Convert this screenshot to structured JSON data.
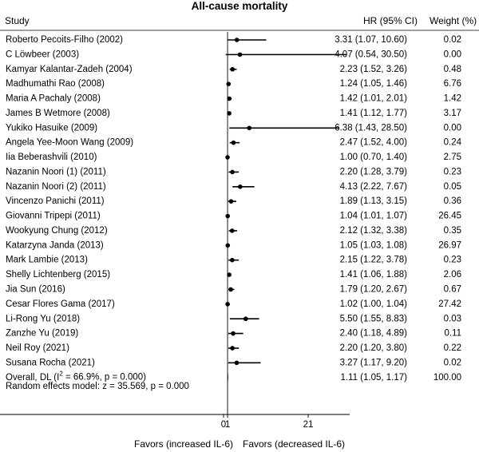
{
  "chart_data": {
    "type": "forest",
    "title": "All-cause mortality",
    "columns": {
      "study": "Study",
      "effect": "HR (95% CI)",
      "weight": "Weight (%)"
    },
    "null_value": 1,
    "x_ticks": [
      0,
      1,
      21
    ],
    "x_range": [
      0,
      36
    ],
    "favors_left": "Favors (increased IL-6)",
    "favors_right": "Favors (decreased IL-6)",
    "studies": [
      {
        "name": "Roberto Pecoits-Filho (2002)",
        "hr": 3.31,
        "lo": 1.07,
        "hi": 10.6,
        "ci_text": "3.31 (1.07, 10.60)",
        "weight": "0.02"
      },
      {
        "name": "C Löwbeer (2003)",
        "hr": 4.07,
        "lo": 0.54,
        "hi": 30.5,
        "ci_text": "4.07 (0.54, 30.50)",
        "weight": "0.00"
      },
      {
        "name": "Kamyar Kalantar-Zadeh (2004)",
        "hr": 2.23,
        "lo": 1.52,
        "hi": 3.26,
        "ci_text": "2.23 (1.52, 3.26)",
        "weight": "0.48"
      },
      {
        "name": "Madhumathi Rao (2008)",
        "hr": 1.24,
        "lo": 1.05,
        "hi": 1.46,
        "ci_text": "1.24 (1.05, 1.46)",
        "weight": "6.76"
      },
      {
        "name": "Maria A Pachaly (2008)",
        "hr": 1.42,
        "lo": 1.01,
        "hi": 2.01,
        "ci_text": "1.42 (1.01, 2.01)",
        "weight": "1.42"
      },
      {
        "name": "James B Wetmore (2008)",
        "hr": 1.41,
        "lo": 1.12,
        "hi": 1.77,
        "ci_text": "1.41 (1.12, 1.77)",
        "weight": "3.17"
      },
      {
        "name": "Yukiko Hasuike (2009)",
        "hr": 6.38,
        "lo": 1.43,
        "hi": 28.5,
        "ci_text": "6.38 (1.43, 28.50)",
        "weight": "0.00"
      },
      {
        "name": "Angela Yee-Moon Wang (2009)",
        "hr": 2.47,
        "lo": 1.52,
        "hi": 4.0,
        "ci_text": "2.47 (1.52, 4.00)",
        "weight": "0.24"
      },
      {
        "name": "Iia Beberashvili (2010)",
        "hr": 1.0,
        "lo": 0.7,
        "hi": 1.4,
        "ci_text": "1.00 (0.70, 1.40)",
        "weight": "2.75"
      },
      {
        "name": "Nazanin Noori (1) (2011)",
        "hr": 2.2,
        "lo": 1.28,
        "hi": 3.79,
        "ci_text": "2.20 (1.28, 3.79)",
        "weight": "0.23"
      },
      {
        "name": "Nazanin Noori (2) (2011)",
        "hr": 4.13,
        "lo": 2.22,
        "hi": 7.67,
        "ci_text": "4.13 (2.22, 7.67)",
        "weight": "0.05"
      },
      {
        "name": "Vincenzo Panichi (2011)",
        "hr": 1.89,
        "lo": 1.13,
        "hi": 3.15,
        "ci_text": "1.89 (1.13, 3.15)",
        "weight": "0.36"
      },
      {
        "name": "Giovanni Tripepi (2011)",
        "hr": 1.04,
        "lo": 1.01,
        "hi": 1.07,
        "ci_text": "1.04 (1.01, 1.07)",
        "weight": "26.45"
      },
      {
        "name": "Wookyung Chung (2012)",
        "hr": 2.12,
        "lo": 1.32,
        "hi": 3.38,
        "ci_text": "2.12 (1.32, 3.38)",
        "weight": "0.35"
      },
      {
        "name": "Katarzyna Janda (2013)",
        "hr": 1.05,
        "lo": 1.03,
        "hi": 1.08,
        "ci_text": "1.05 (1.03, 1.08)",
        "weight": "26.97"
      },
      {
        "name": "Mark Lambie (2013)",
        "hr": 2.15,
        "lo": 1.22,
        "hi": 3.78,
        "ci_text": "2.15 (1.22, 3.78)",
        "weight": "0.23"
      },
      {
        "name": "Shelly Lichtenberg (2015)",
        "hr": 1.41,
        "lo": 1.06,
        "hi": 1.88,
        "ci_text": "1.41 (1.06, 1.88)",
        "weight": "2.06"
      },
      {
        "name": "Jia Sun (2016)",
        "hr": 1.79,
        "lo": 1.2,
        "hi": 2.67,
        "ci_text": "1.79 (1.20, 2.67)",
        "weight": "0.67"
      },
      {
        "name": "Cesar Flores Gama (2017)",
        "hr": 1.02,
        "lo": 1.0,
        "hi": 1.04,
        "ci_text": "1.02 (1.00, 1.04)",
        "weight": "27.42"
      },
      {
        "name": "Li-Rong Yu (2018)",
        "hr": 5.5,
        "lo": 1.55,
        "hi": 8.83,
        "ci_text": "5.50 (1.55, 8.83)",
        "weight": "0.03"
      },
      {
        "name": "Zanzhe Yu (2019)",
        "hr": 2.4,
        "lo": 1.18,
        "hi": 4.89,
        "ci_text": "2.40 (1.18, 4.89)",
        "weight": "0.11"
      },
      {
        "name": "Neil Roy (2021)",
        "hr": 2.2,
        "lo": 1.2,
        "hi": 3.8,
        "ci_text": "2.20 (1.20, 3.80)",
        "weight": "0.22"
      },
      {
        "name": "Susana Rocha (2021)",
        "hr": 3.27,
        "lo": 1.17,
        "hi": 9.2,
        "ci_text": "3.27 (1.17, 9.20)",
        "weight": "0.02"
      }
    ],
    "overall": {
      "label_prefix": "Overall, DL (I",
      "label_sup": "2",
      "label_suffix": " = 66.9%, p = 0.000)",
      "hr": 1.11,
      "lo": 1.05,
      "hi": 1.17,
      "ci_text": "1.11 (1.05, 1.17)",
      "weight": "100.00",
      "diamond_color": "#1f3d7a"
    },
    "random_effects_text": "Random effects model: z = 35.569, p = 0.000"
  }
}
